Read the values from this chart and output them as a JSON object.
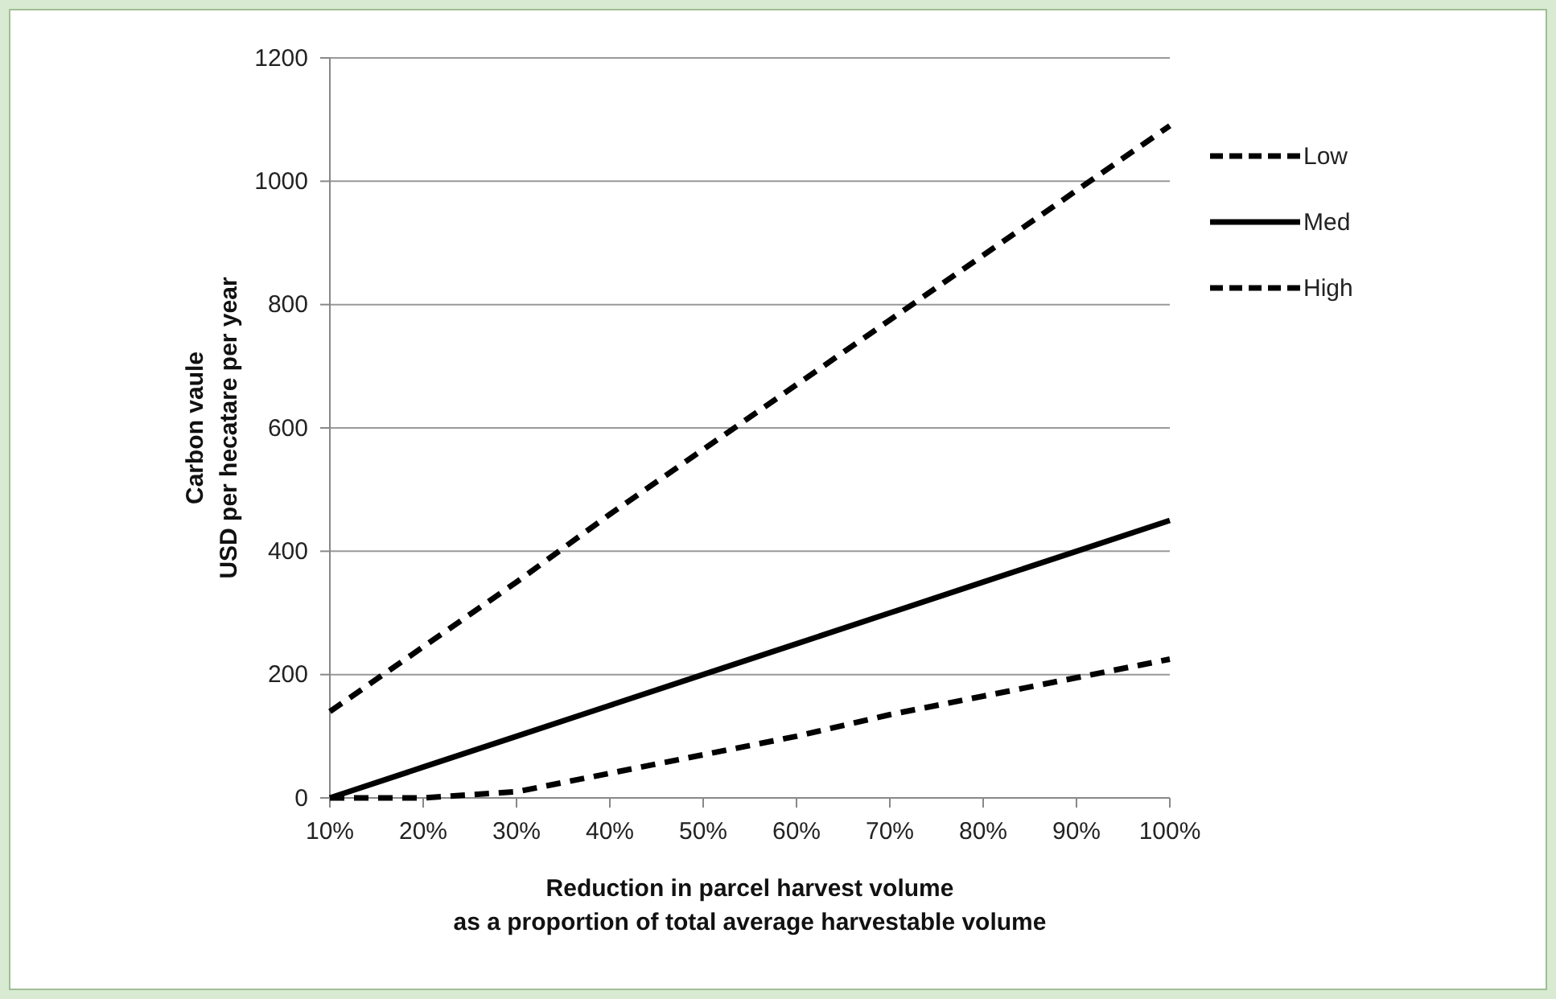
{
  "chart_data": {
    "type": "line",
    "xlabel": "Reduction in parcel harvest volume\nas a proportion of total average harvestable volume",
    "ylabel": "Carbon vaule\nUSD per hecatare per year",
    "categories": [
      "10%",
      "20%",
      "30%",
      "40%",
      "50%",
      "60%",
      "70%",
      "80%",
      "90%",
      "100%"
    ],
    "ylim": [
      0,
      1200
    ],
    "yticks": [
      0,
      200,
      400,
      600,
      800,
      1000,
      1200
    ],
    "grid": "y",
    "legend": "right",
    "marker": "none",
    "series": [
      {
        "name": "Low",
        "color": "#000000",
        "line_style": "dashed",
        "values": [
          140,
          245,
          350,
          460,
          565,
          670,
          775,
          880,
          985,
          1090
        ]
      },
      {
        "name": "Med",
        "color": "#000000",
        "line_style": "solid",
        "values": [
          0,
          50,
          100,
          150,
          200,
          250,
          300,
          350,
          400,
          450
        ]
      },
      {
        "name": "High",
        "color": "#000000",
        "line_style": "dashed",
        "values": [
          0,
          0,
          10,
          40,
          70,
          100,
          135,
          165,
          195,
          225
        ]
      }
    ]
  }
}
